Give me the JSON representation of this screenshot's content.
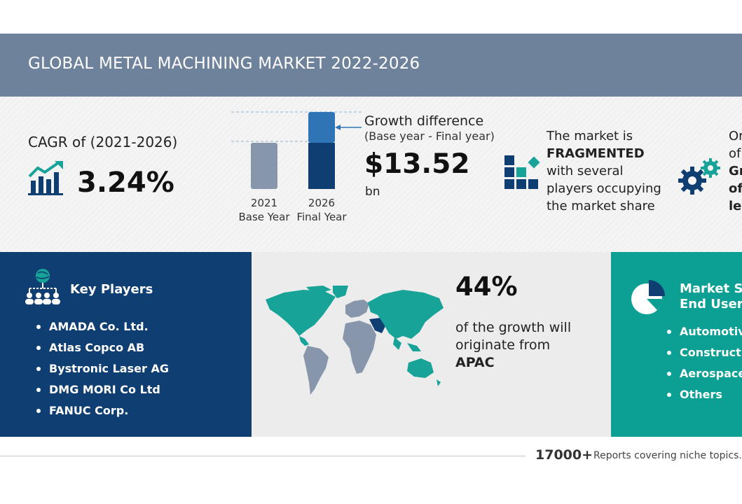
{
  "header": {
    "title": "GLOBAL METAL MACHINING MARKET 2022-2026"
  },
  "cagr": {
    "label": "CAGR of (2021-2026)",
    "value": "3.24%",
    "icon": "growth-bar-chart-icon"
  },
  "growth_chart": {
    "base_year": "2021",
    "base_label": "Base Year",
    "final_year": "2026",
    "final_label": "Final Year"
  },
  "growth": {
    "label": "Growth difference",
    "sub": "(Base year - Final year)",
    "value": "$13.52",
    "unit": "bn"
  },
  "fragmentation": {
    "line1": "The market is",
    "line2": "FRAGMENTED",
    "line3": "with several",
    "line4": "players occupying",
    "line5": "the market share",
    "icon": "blocks-icon"
  },
  "opportunity": {
    "line1": "Or",
    "line2": "of",
    "line3": "Gr",
    "line4": "of",
    "line5": "lev",
    "icon": "gears-icon"
  },
  "key_players": {
    "title": "Key Players",
    "icon": "network-people-icon",
    "items": [
      "AMADA Co. Ltd.",
      "Atlas Copco AB",
      "Bystronic Laser AG",
      "DMG MORI Co Ltd",
      "FANUC Corp."
    ]
  },
  "region": {
    "percent": "44%",
    "line1": "of the growth will",
    "line2": "originate from",
    "line3": "APAC",
    "icon": "world-map-icon"
  },
  "segment": {
    "title_line1": "Market Se",
    "title_line2": "End User",
    "icon": "pie-chart-icon",
    "items": [
      "Automotive",
      "Constructio",
      "Aerospace",
      "Others"
    ]
  },
  "footer": {
    "count": "17000+",
    "text": "Reports covering niche topics. Re"
  },
  "colors": {
    "header_bg": "#6e829c",
    "players_bg": "#0f3f72",
    "segment_bg": "#0c9f94",
    "accent_teal": "#17a398",
    "bar_dark": "#0f3f72",
    "bar_light": "#2f74b5",
    "bar_grey": "#8796aa"
  }
}
